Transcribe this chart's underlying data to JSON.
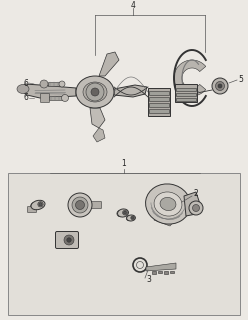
{
  "background_color": "#ece9e4",
  "fig_width": 2.48,
  "fig_height": 3.2,
  "dpi": 100,
  "top_bg": "#ece9e4",
  "bot_bg": "#e2dfd9",
  "border_color": "#888888",
  "line_color": "#555555",
  "dark_color": "#333333",
  "mid_color": "#777777",
  "light_color": "#bbbbbb",
  "label_fs": 5.5,
  "label_color": "#222222"
}
